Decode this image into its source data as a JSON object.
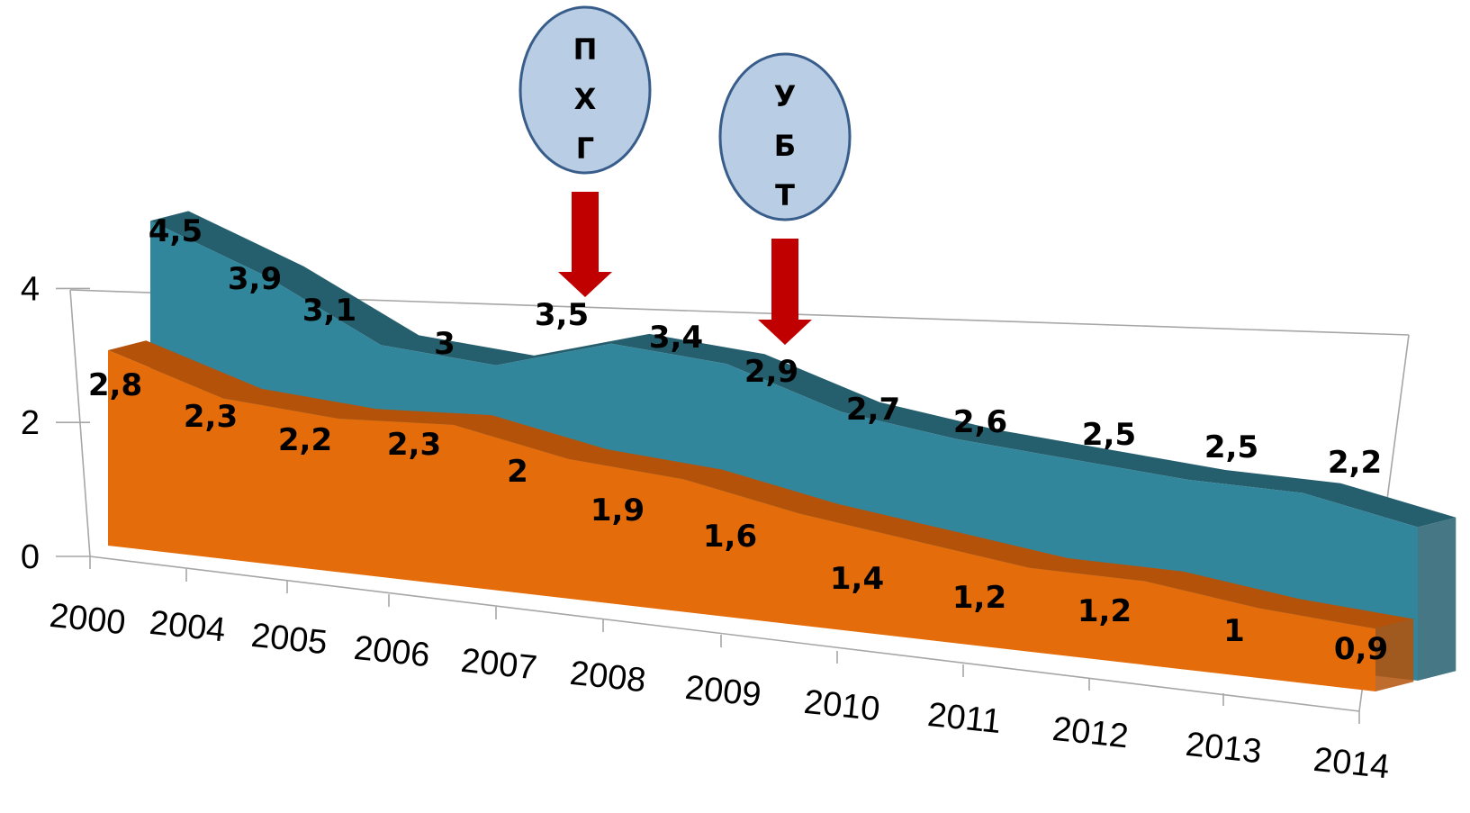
{
  "chart_data": {
    "type": "area",
    "categories": [
      "2000",
      "2004",
      "2005",
      "2006",
      "2007",
      "2008",
      "2009",
      "2010",
      "2011",
      "2012",
      "2013",
      "2014"
    ],
    "series": [
      {
        "values": [
          4.5,
          3.9,
          3.1,
          3.0,
          3.5,
          3.4,
          2.9,
          2.7,
          2.6,
          2.5,
          2.5,
          2.2
        ],
        "labels": [
          "4,5",
          "3,9",
          "3,1",
          "3",
          "3,5",
          "3,4",
          "2,9",
          "2,7",
          "2,6",
          "2,5",
          "2,5",
          "2,2"
        ],
        "color": "#31869B",
        "top_color": "#255F6E"
      },
      {
        "values": [
          2.8,
          2.3,
          2.2,
          2.3,
          2.0,
          1.9,
          1.6,
          1.4,
          1.2,
          1.2,
          1.0,
          0.9
        ],
        "labels": [
          "2,8",
          "2,3",
          "2,2",
          "2,3",
          "2",
          "1,9",
          "1,6",
          "1,4",
          "1,2",
          "1,2",
          "1",
          "0,9"
        ],
        "color": "#E46C0A",
        "top_color": "#B4520A"
      }
    ],
    "yticks": [
      {
        "value": 0,
        "label": "0"
      },
      {
        "value": 2,
        "label": "2"
      },
      {
        "value": 4,
        "label": "4"
      }
    ],
    "ylim": [
      0,
      4.6
    ],
    "grid": false,
    "annotations": [
      {
        "lines": [
          "П",
          "Х",
          "Г"
        ],
        "between": [
          "2007",
          "2008"
        ]
      },
      {
        "lines": [
          "У",
          "Б",
          "Т"
        ],
        "between": [
          "2009",
          "2010"
        ]
      }
    ],
    "colors": {
      "ellipse_fill": "#B9CDE5",
      "ellipse_stroke": "#385D8A",
      "arrow": "#C00000"
    }
  }
}
